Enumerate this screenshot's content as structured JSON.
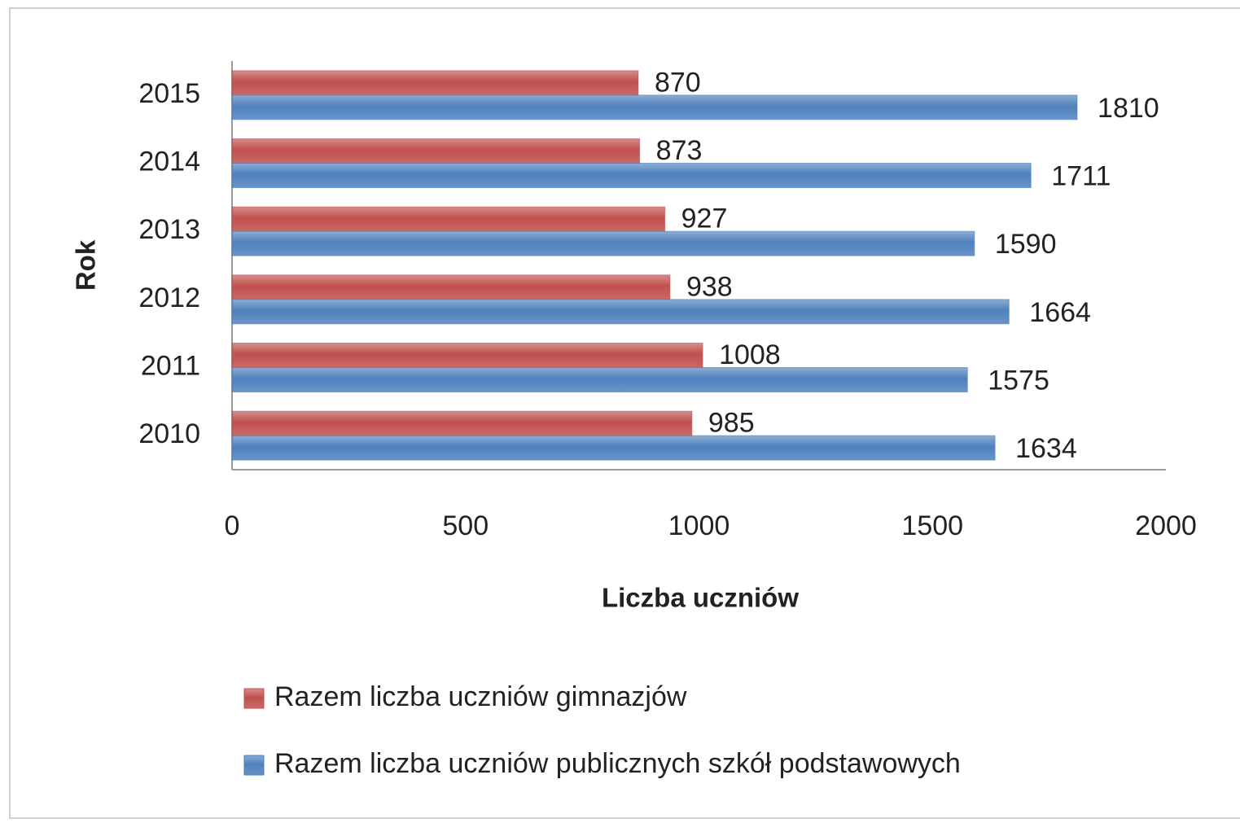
{
  "chart_data": {
    "type": "bar",
    "orientation": "horizontal",
    "x_label": "Liczba uczniów",
    "y_label": "Rok",
    "categories": [
      "2010",
      "2011",
      "2012",
      "2013",
      "2014",
      "2015"
    ],
    "series": [
      {
        "name": "Razem liczba uczniów gimnazjów",
        "color": "#c0504d",
        "values": [
          985,
          1008,
          938,
          927,
          873,
          870
        ]
      },
      {
        "name": "Razem liczba uczniów publicznych szkół podstawowych",
        "color": "#4f81bd",
        "values": [
          1634,
          1575,
          1664,
          1590,
          1711,
          1810
        ]
      }
    ],
    "xlim": [
      0,
      2000
    ],
    "xticks": [
      0,
      500,
      1000,
      1500,
      2000
    ],
    "grid": false,
    "legend": "bottom"
  }
}
